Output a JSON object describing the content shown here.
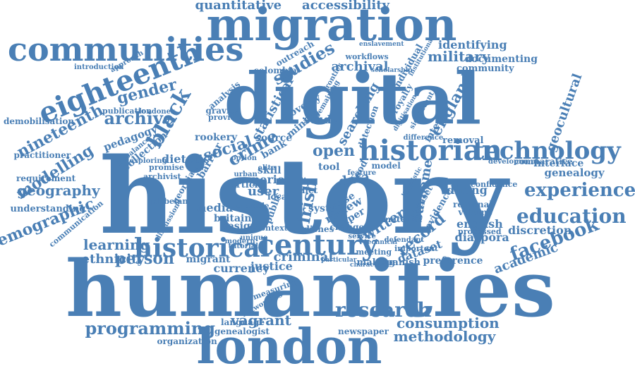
{
  "color": "#4a7fb5",
  "words": [
    "history",
    "humanities",
    "digital",
    "london",
    "migration",
    "communities",
    "eighteenth",
    "historian",
    "technology",
    "century",
    "historical",
    "research",
    "experience",
    "education",
    "facebook",
    "programming",
    "methodology",
    "consumption",
    "accessibility",
    "quantitative",
    "black",
    "archive",
    "gender",
    "nineteenth",
    "modelling",
    "geography",
    "demographic",
    "learning",
    "person",
    "ethnicity",
    "criminal",
    "justice",
    "vagrant",
    "record",
    "irish",
    "twitter",
    "social",
    "crime",
    "open",
    "studies",
    "archival",
    "searching",
    "england",
    "military",
    "identifying",
    "documenting",
    "community",
    "geocultural",
    "genealogy",
    "interface",
    "comparative",
    "diaspora",
    "english",
    "academic",
    "preference",
    "discretion",
    "dataset",
    "surname",
    "dining",
    "removal",
    "royalty",
    "statistical",
    "study",
    "source",
    "dietetic",
    "barrier",
    "bank",
    "tool",
    "data",
    "user",
    "period",
    "skill",
    "article",
    "currency",
    "migrant",
    "making",
    "spanish",
    "meeting",
    "language",
    "genealogist",
    "organization",
    "newspaper",
    "understanding",
    "requirement",
    "practitioner",
    "demobilisation",
    "introduction",
    "approach",
    "publication",
    "londoner",
    "pedagogy",
    "collection",
    "imbalance",
    "exploring",
    "rookery",
    "analysis",
    "gravity",
    "provide",
    "colombia",
    "outreach",
    "workflows",
    "enslavement",
    "individual",
    "scholarship",
    "poverty",
    "mining",
    "detection",
    "internal",
    "evidence",
    "regional",
    "volume",
    "processed",
    "media",
    "britain",
    "design",
    "public",
    "local",
    "review",
    "case",
    "paper",
    "change",
    "system",
    "dishes",
    "model",
    "food",
    "dataset",
    "material",
    "important",
    "defendant",
    "plebeian",
    "georgian",
    "archivist",
    "discussion",
    "communication",
    "modern",
    "measuring",
    "tutorial",
    "networking",
    "development",
    "confidence",
    "institutional",
    "technical",
    "linguistic",
    "particular",
    "characters",
    "digitisation",
    "significant",
    "remaining",
    "frontier",
    "difference",
    "diet",
    "context",
    "promise",
    "elite",
    "unique",
    "crumble",
    "option",
    "urban",
    "live",
    "service",
    "feature"
  ]
}
